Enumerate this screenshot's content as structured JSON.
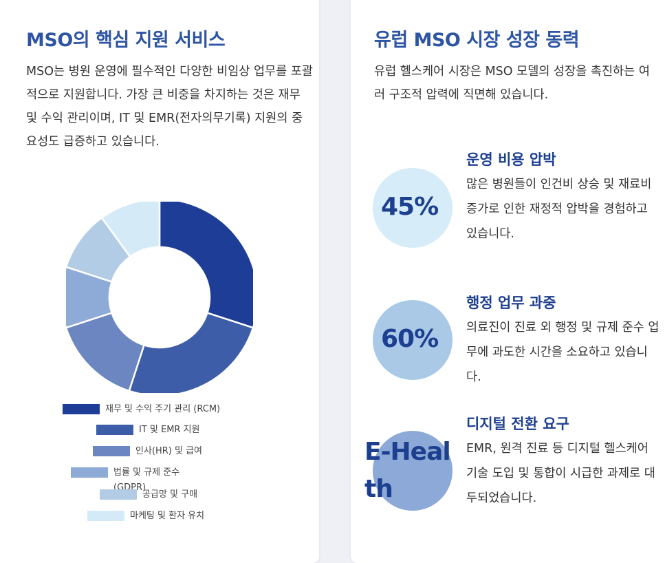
{
  "colors": {
    "heading": "#2e55a4",
    "stat_text": "#1d3f8f",
    "background": "#eef0f5",
    "card": "#ffffff"
  },
  "left": {
    "title": "MSO의 핵심 지원 서비스",
    "description": "MSO는 병원 운영에 필수적인 다양한 비임상 업무를 포괄적으로 지원합니다. 가장 큰 비중을 차지하는 것은 재무 및 수익 관리이며, IT 및 EMR(전자의무기록) 지원의 중요성도 급증하고 있습니다."
  },
  "chart_data": {
    "type": "pie",
    "hole": true,
    "categories": [
      "재무 및 수익 주기 관리 (RCM)",
      "IT 및 EMR 지원",
      "인사(HR) 및 급여",
      "법률 및 규제 준수 (GDPR)",
      "공급망 및 구매",
      "마케팅 및 환자 유치"
    ],
    "values": [
      30,
      25,
      15,
      10,
      10,
      10
    ],
    "colors": [
      "#1e3d96",
      "#3d5da8",
      "#6b86c0",
      "#8eaad6",
      "#b3cce6",
      "#d5eaf7"
    ],
    "legend_labels": [
      "재무 및 수익 주기 관리 (RCM)",
      "IT 및 EMR 지원",
      "인사(HR) 및 급여",
      "법률 및 규제 준수 (GDPR)",
      "공급망 및 구매",
      "마케팅 및 환자 유치"
    ],
    "legend_placement": "bottom"
  },
  "right": {
    "title": "유럽 MSO 시장 성장 동력",
    "description": "유럽 헬스케어 시장은 MSO 모델의 성장을 촉진하는 여러 구조적 압력에 직면해 있습니다.",
    "stats": [
      {
        "value": "45%",
        "title": "운영 비용 압박",
        "description": "많은 병원들이 인건비 상승 및 재료비 증가로 인한 재정적 압박을 경험하고 있습니다.",
        "circle_color": "#d6ecf8"
      },
      {
        "value": "60%",
        "title": "행정 업무 과중",
        "description": "의료진이 진료 외 행정 및 규제 준수 업무에 과도한 시간을 소요하고 있습니다.",
        "circle_color": "#a9c9e7"
      },
      {
        "value": "E-Health",
        "title": "디지털 전환 요구",
        "description": "EMR, 원격 진료 등 디지털 헬스케어 기술 도입 및 통합이 시급한 과제로 대두되었습니다.",
        "circle_color": "#8ca9d7"
      }
    ]
  }
}
